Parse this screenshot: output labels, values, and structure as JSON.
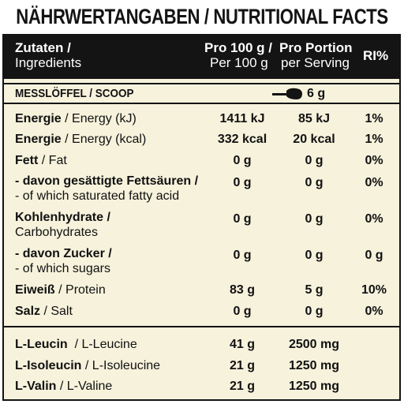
{
  "title": "NÄHRWERTANGABEN / NUTRITIONAL FACTS",
  "header": {
    "ingredients_de": "Zutaten /",
    "ingredients_en": "Ingredients",
    "per100_de": "Pro 100 g /",
    "per100_en": "Per 100 g",
    "portion_de": "Pro Portion",
    "portion_en": "per Serving",
    "ri": "RI%"
  },
  "scoop": {
    "label": "MESSLÖFFEL / SCOOP",
    "value": "6 g",
    "icon": "scoop-icon"
  },
  "rows": [
    {
      "de": "Energie",
      "en": " / Energy (kJ)",
      "de2": "",
      "en2": "",
      "per100": "1411 kJ",
      "serving": "85 kJ",
      "ri": "1%"
    },
    {
      "de": "Energie",
      "en": " / Energy (kcal)",
      "de2": "",
      "en2": "",
      "per100": "332 kcal",
      "serving": "20 kcal",
      "ri": "1%"
    },
    {
      "de": "Fett",
      "en": " / Fat",
      "de2": "",
      "en2": "",
      "per100": "0 g",
      "serving": "0 g",
      "ri": "0%"
    },
    {
      "de": "- davon gesättigte Fettsäuren /",
      "en": "",
      "de2": "",
      "en2": "- of which saturated fatty acid",
      "per100": "0 g",
      "serving": "0 g",
      "ri": "0%"
    },
    {
      "de": "Kohlenhydrate /",
      "en": "",
      "de2": "",
      "en2": "Carbohydrates",
      "per100": "0 g",
      "serving": "0 g",
      "ri": "0%"
    },
    {
      "de": "- davon Zucker /",
      "en": "",
      "de2": "",
      "en2": "- of which sugars",
      "per100": "0 g",
      "serving": "0 g",
      "ri": "0 g"
    },
    {
      "de": "Eiweiß",
      "en": " / Protein",
      "de2": "",
      "en2": "",
      "per100": "83 g",
      "serving": "5 g",
      "ri": "10%"
    },
    {
      "de": "Salz",
      "en": " / Salt",
      "de2": "",
      "en2": "",
      "per100": "0 g",
      "serving": "0 g",
      "ri": "0%"
    }
  ],
  "amino_rows": [
    {
      "de": "L-Leucin",
      "en": "  / L-Leucine",
      "per100": "41 g",
      "serving": "2500 mg"
    },
    {
      "de": "L-Isoleucin",
      "en": " / L-Isoleucine",
      "per100": "21 g",
      "serving": "1250 mg"
    },
    {
      "de": "L-Valin",
      "en": " / L-Valine",
      "per100": "21 g",
      "serving": "1250 mg"
    }
  ]
}
